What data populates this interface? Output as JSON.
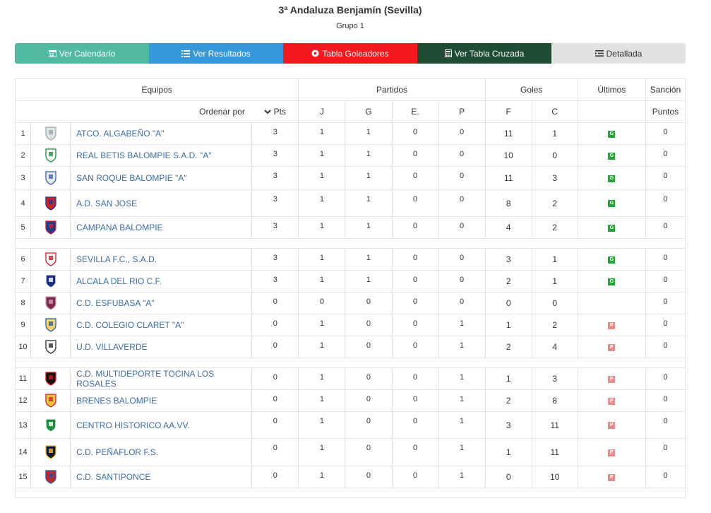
{
  "header": {
    "title": "3ª Andaluza Benjamín (Sevilla)",
    "subtitle": "Grupo 1"
  },
  "buttons": [
    {
      "label": "Ver Calendario",
      "icon": "calendar-icon",
      "color": "#4fb9a2"
    },
    {
      "label": "Ver Resultados",
      "icon": "list-icon",
      "color": "#3498db"
    },
    {
      "label": "Tabla Goleadores",
      "icon": "soccer-ball-icon",
      "color": "#f5191f"
    },
    {
      "label": "Ver Tabla Cruzada",
      "icon": "calculator-icon",
      "color": "#1f4d34"
    },
    {
      "label": "Detallada",
      "icon": "list-detail-icon",
      "color": "#e2e2e2"
    }
  ],
  "table": {
    "groups": {
      "equipos": "Equipos",
      "partidos": "Partidos",
      "goles": "Goles",
      "ultimos": "Últimos",
      "sancion": "Sanción"
    },
    "columns": {
      "ordenar": "Ordenar por",
      "pts": "Pts",
      "j": "J",
      "g": "G",
      "e": "E.",
      "p": "P",
      "f": "F",
      "c": "C",
      "puntos": "Puntos"
    },
    "badge_colors": {
      "G": "#1fa634",
      "P": "#e98a8a"
    },
    "rows": [
      {
        "pos": "1",
        "team": "ATCO. ALGABEÑO \"A\"",
        "pts": "3",
        "j": "1",
        "g": "1",
        "e": "0",
        "p": "0",
        "f": "11",
        "c": "1",
        "last": "G",
        "sancion": "0"
      },
      {
        "pos": "2",
        "team": "REAL BETIS BALOMPIE S.A.D. \"A\"",
        "pts": "3",
        "j": "1",
        "g": "1",
        "e": "0",
        "p": "0",
        "f": "10",
        "c": "0",
        "last": "G",
        "sancion": "0"
      },
      {
        "pos": "3",
        "team": "SAN ROQUE BALOMPIE \"A\"",
        "pts": "3",
        "j": "1",
        "g": "1",
        "e": "0",
        "p": "0",
        "f": "11",
        "c": "3",
        "last": "G",
        "sancion": "0"
      },
      {
        "pos": "4",
        "team": "A.D. SAN JOSE",
        "pts": "3",
        "j": "1",
        "g": "1",
        "e": "0",
        "p": "0",
        "f": "8",
        "c": "2",
        "last": "G",
        "sancion": "0"
      },
      {
        "pos": "5",
        "team": "CAMPANA BALOMPIE",
        "pts": "3",
        "j": "1",
        "g": "1",
        "e": "0",
        "p": "0",
        "f": "4",
        "c": "2",
        "last": "G",
        "sancion": "0"
      },
      {
        "pos": "6",
        "team": "SEVILLA F.C., S.A.D.",
        "pts": "3",
        "j": "1",
        "g": "1",
        "e": "0",
        "p": "0",
        "f": "3",
        "c": "1",
        "last": "G",
        "sancion": "0"
      },
      {
        "pos": "7",
        "team": "ALCALA DEL RIO C.F.",
        "pts": "3",
        "j": "1",
        "g": "1",
        "e": "0",
        "p": "0",
        "f": "2",
        "c": "1",
        "last": "G",
        "sancion": "0"
      },
      {
        "pos": "8",
        "team": "C.D. ESFUBASA \"A\"",
        "pts": "0",
        "j": "0",
        "g": "0",
        "e": "0",
        "p": "0",
        "f": "0",
        "c": "0",
        "last": "",
        "sancion": "0"
      },
      {
        "pos": "9",
        "team": "C.D. COLEGIO CLARET \"A\"",
        "pts": "0",
        "j": "1",
        "g": "0",
        "e": "0",
        "p": "1",
        "f": "1",
        "c": "2",
        "last": "P",
        "sancion": "0"
      },
      {
        "pos": "10",
        "team": "U.D. VILLAVERDE",
        "pts": "0",
        "j": "1",
        "g": "0",
        "e": "0",
        "p": "1",
        "f": "2",
        "c": "4",
        "last": "P",
        "sancion": "0"
      },
      {
        "pos": "11",
        "team": "C.D. MULTIDEPORTE TOCINA LOS ROSALES",
        "pts": "0",
        "j": "1",
        "g": "0",
        "e": "0",
        "p": "1",
        "f": "1",
        "c": "3",
        "last": "P",
        "sancion": "0"
      },
      {
        "pos": "12",
        "team": "BRENES BALOMPIE",
        "pts": "0",
        "j": "1",
        "g": "0",
        "e": "0",
        "p": "1",
        "f": "2",
        "c": "8",
        "last": "P",
        "sancion": "0"
      },
      {
        "pos": "13",
        "team": "CENTRO HISTORICO AA.VV.",
        "pts": "0",
        "j": "1",
        "g": "0",
        "e": "0",
        "p": "1",
        "f": "3",
        "c": "11",
        "last": "P",
        "sancion": "0"
      },
      {
        "pos": "14",
        "team": "C.D. PEÑAFLOR F.S.",
        "pts": "0",
        "j": "1",
        "g": "0",
        "e": "0",
        "p": "1",
        "f": "1",
        "c": "11",
        "last": "P",
        "sancion": "0"
      },
      {
        "pos": "15",
        "team": "C.D. SANTIPONCE",
        "pts": "0",
        "j": "1",
        "g": "0",
        "e": "0",
        "p": "1",
        "f": "0",
        "c": "10",
        "last": "P",
        "sancion": "0"
      }
    ]
  }
}
